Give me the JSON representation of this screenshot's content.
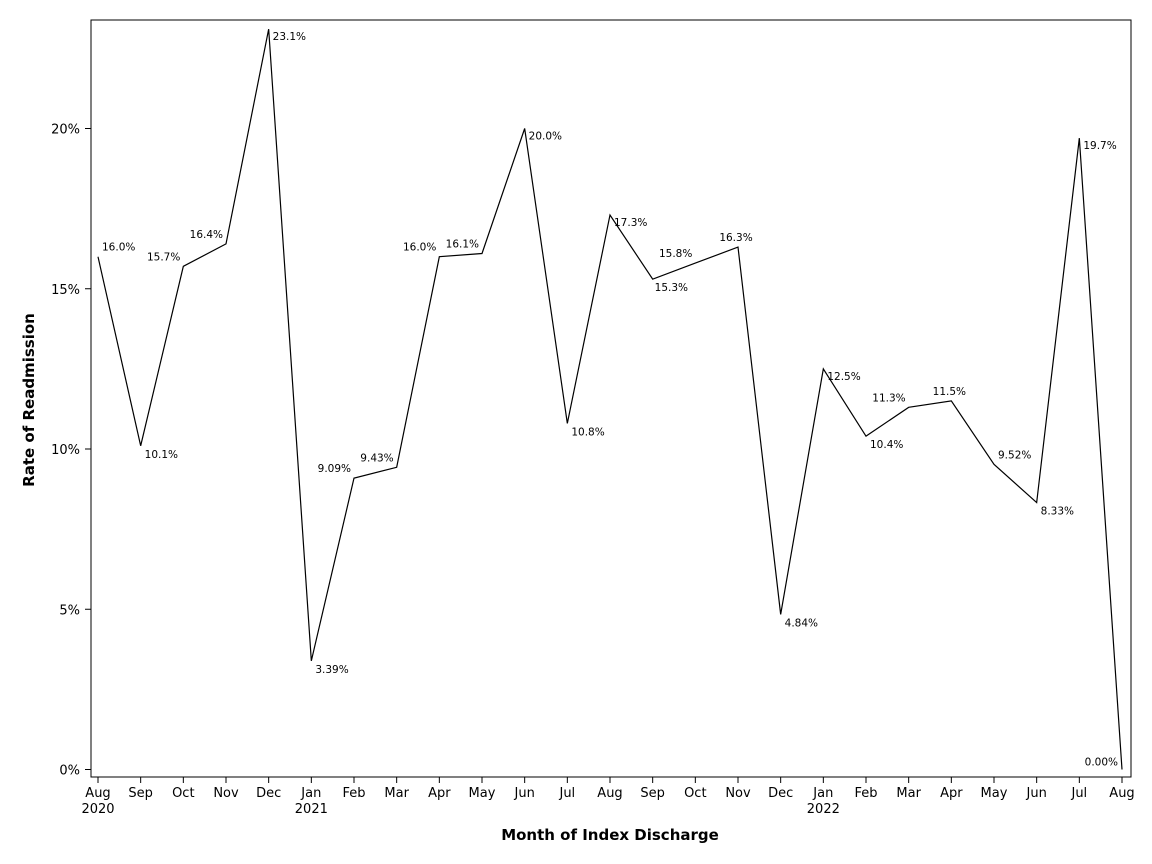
{
  "chart_data": {
    "type": "line",
    "xlabel": "Month of Index Discharge",
    "ylabel": "Rate of Readmission",
    "ylim": [
      0,
      23.6
    ],
    "grid": false,
    "legend": "none",
    "line_color": "#000000",
    "yticks": [
      {
        "value": 0,
        "label": "0%"
      },
      {
        "value": 5,
        "label": "5%"
      },
      {
        "value": 10,
        "label": "10%"
      },
      {
        "value": 15,
        "label": "15%"
      },
      {
        "value": 20,
        "label": "20%"
      }
    ],
    "points": [
      {
        "month": "Aug",
        "year": "2020",
        "value": 16.0,
        "label": "16.0%"
      },
      {
        "month": "Sep",
        "year": "",
        "value": 10.1,
        "label": "10.1%"
      },
      {
        "month": "Oct",
        "year": "",
        "value": 15.7,
        "label": "15.7%"
      },
      {
        "month": "Nov",
        "year": "",
        "value": 16.4,
        "label": "16.4%"
      },
      {
        "month": "Dec",
        "year": "",
        "value": 23.1,
        "label": "23.1%"
      },
      {
        "month": "Jan",
        "year": "2021",
        "value": 3.39,
        "label": "3.39%"
      },
      {
        "month": "Feb",
        "year": "",
        "value": 9.09,
        "label": "9.09%"
      },
      {
        "month": "Mar",
        "year": "",
        "value": 9.43,
        "label": "9.43%"
      },
      {
        "month": "Apr",
        "year": "",
        "value": 16.0,
        "label": "16.0%"
      },
      {
        "month": "May",
        "year": "",
        "value": 16.1,
        "label": "16.1%"
      },
      {
        "month": "Jun",
        "year": "",
        "value": 20.0,
        "label": "20.0%"
      },
      {
        "month": "Jul",
        "year": "",
        "value": 10.8,
        "label": "10.8%"
      },
      {
        "month": "Aug",
        "year": "",
        "value": 17.3,
        "label": "17.3%"
      },
      {
        "month": "Sep",
        "year": "",
        "value": 15.3,
        "label": "15.3%"
      },
      {
        "month": "Oct",
        "year": "",
        "value": 15.8,
        "label": "15.8%"
      },
      {
        "month": "Nov",
        "year": "",
        "value": 16.3,
        "label": "16.3%"
      },
      {
        "month": "Dec",
        "year": "",
        "value": 4.84,
        "label": "4.84%"
      },
      {
        "month": "Jan",
        "year": "2022",
        "value": 12.5,
        "label": "12.5%"
      },
      {
        "month": "Feb",
        "year": "",
        "value": 10.4,
        "label": "10.4%"
      },
      {
        "month": "Mar",
        "year": "",
        "value": 11.3,
        "label": "11.3%"
      },
      {
        "month": "Apr",
        "year": "",
        "value": 11.5,
        "label": "11.5%"
      },
      {
        "month": "May",
        "year": "",
        "value": 9.52,
        "label": "9.52%"
      },
      {
        "month": "Jun",
        "year": "",
        "value": 8.33,
        "label": "8.33%"
      },
      {
        "month": "Jul",
        "year": "",
        "value": 19.7,
        "label": "19.7%"
      },
      {
        "month": "Aug",
        "year": "",
        "value": 0.0,
        "label": "0.00%"
      }
    ]
  }
}
